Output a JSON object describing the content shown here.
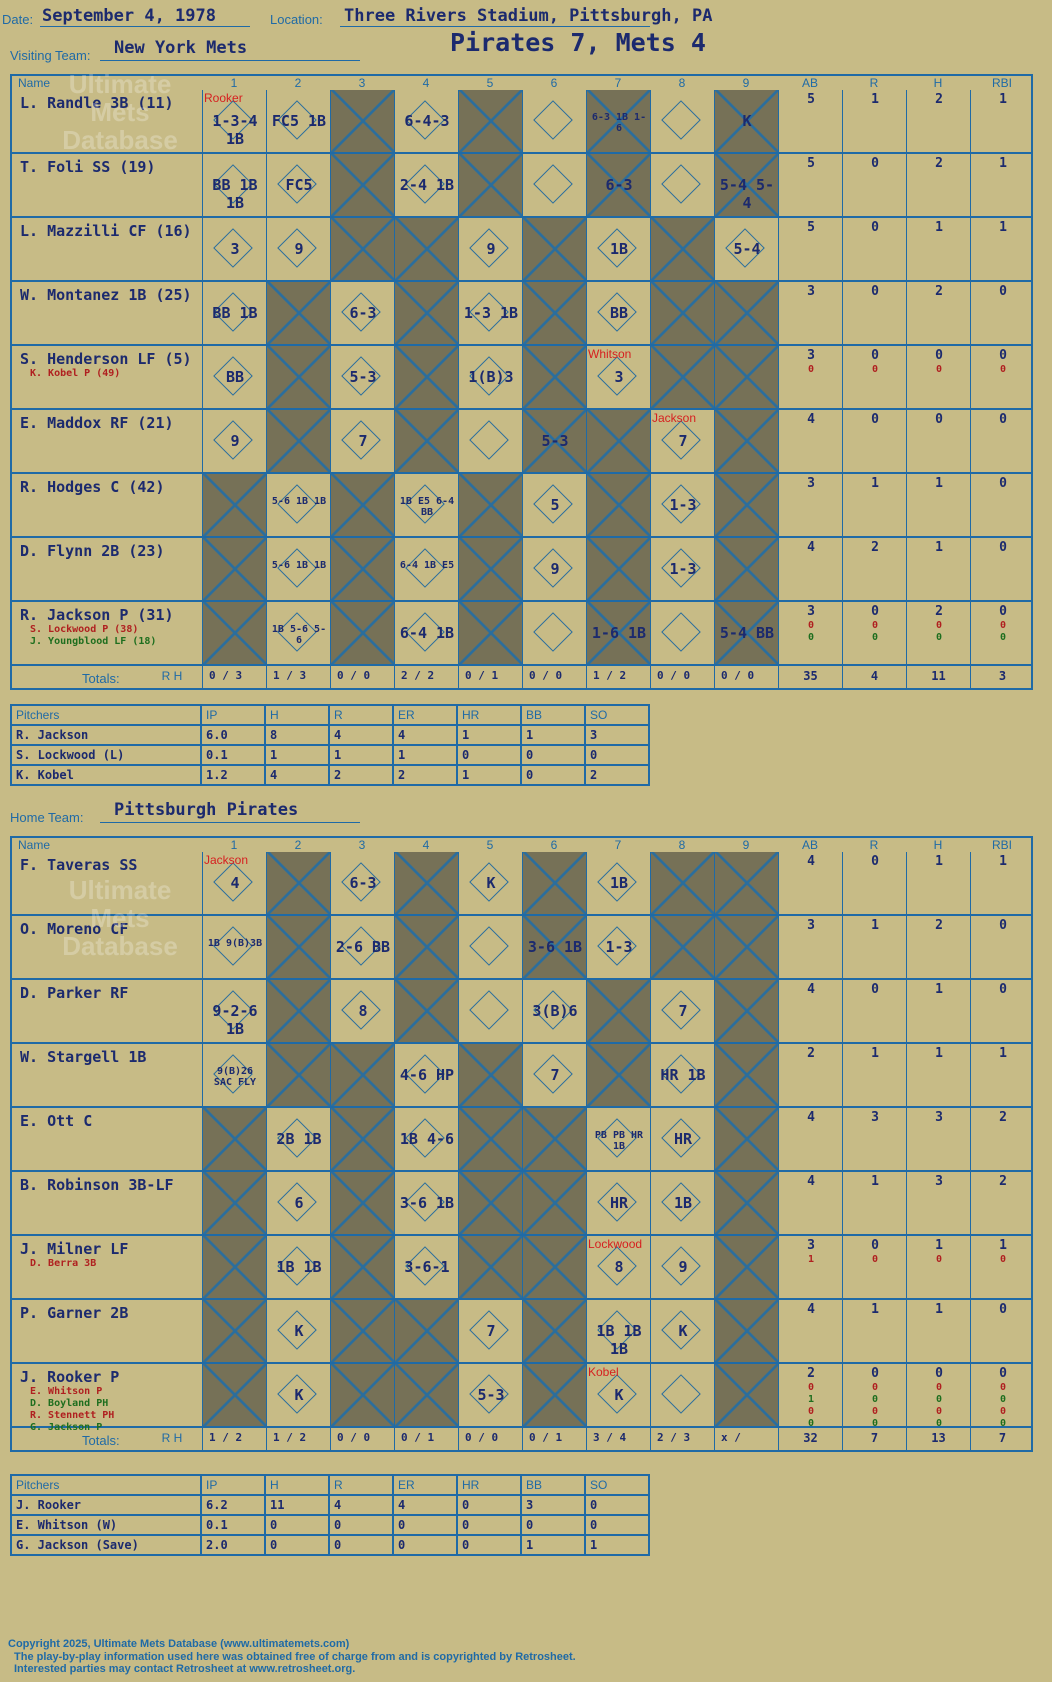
{
  "header": {
    "date_label": "Date:",
    "date": "September 4, 1978",
    "location_label": "Location:",
    "location": "Three Rivers Stadium, Pittsburgh, PA",
    "visiting_label": "Visiting Team:",
    "visiting_team": "New York Mets",
    "home_label": "Home Team:",
    "home_team": "Pittsburgh Pirates",
    "result": "Pirates 7, Mets 4"
  },
  "columns": {
    "name": "Name",
    "innings": [
      "1",
      "2",
      "3",
      "4",
      "5",
      "6",
      "7",
      "8",
      "9"
    ],
    "stats": [
      "AB",
      "R",
      "H",
      "RBI"
    ]
  },
  "watermark": "Ultimate Mets Database",
  "watermark_url": "www.ultimatemets.com",
  "visitors": {
    "players": [
      {
        "name": "L. Randle 3B (11)",
        "subs": [],
        "stats": [
          "5",
          "1",
          "2",
          "1"
        ],
        "marks": [
          "1-3-4 1B",
          "FC5 1B",
          "",
          "6-4-3",
          "",
          "",
          "6-3 1B 1-6",
          "",
          "K"
        ]
      },
      {
        "name": "T. Foli SS (19)",
        "subs": [],
        "stats": [
          "5",
          "0",
          "2",
          "1"
        ],
        "marks": [
          "BB 1B 1B",
          "FC5",
          "",
          "2-4 1B",
          "",
          "",
          "6-3",
          "",
          "5-4 5-4"
        ]
      },
      {
        "name": "L. Mazzilli CF (16)",
        "subs": [],
        "stats": [
          "5",
          "0",
          "1",
          "1"
        ],
        "marks": [
          "3",
          "9",
          "",
          "",
          "9",
          "",
          "1B",
          "",
          "5-4"
        ]
      },
      {
        "name": "W. Montanez 1B (25)",
        "subs": [],
        "stats": [
          "3",
          "0",
          "2",
          "0"
        ],
        "marks": [
          "BB 1B",
          "",
          "6-3",
          "",
          "1-3 1B",
          "",
          "BB",
          "",
          ""
        ]
      },
      {
        "name": "S. Henderson LF (5)",
        "subs": [
          {
            "name": "K. Kobel P (49)",
            "stats": [
              "0",
              "0",
              "0",
              "0"
            ]
          }
        ],
        "stats": [
          "3",
          "0",
          "0",
          "0"
        ],
        "marks": [
          "BB",
          "",
          "5-3",
          "",
          "1(B)3",
          "",
          "3",
          "",
          ""
        ]
      },
      {
        "name": "E. Maddox RF (21)",
        "subs": [],
        "stats": [
          "4",
          "0",
          "0",
          "0"
        ],
        "marks": [
          "9",
          "",
          "7",
          "",
          "",
          "5-3",
          "",
          "7",
          ""
        ]
      },
      {
        "name": "R. Hodges C (42)",
        "subs": [],
        "stats": [
          "3",
          "1",
          "1",
          "0"
        ],
        "marks": [
          "",
          "5-6 1B 1B",
          "",
          "1B E5 6-4 BB",
          "",
          "5",
          "",
          "1-3",
          ""
        ]
      },
      {
        "name": "D. Flynn 2B (23)",
        "subs": [],
        "stats": [
          "4",
          "2",
          "1",
          "0"
        ],
        "marks": [
          "",
          "5-6 1B 1B",
          "",
          "6-4 1B E5",
          "",
          "9",
          "",
          "1-3",
          ""
        ]
      },
      {
        "name": "R. Jackson P (31)",
        "subs": [
          {
            "name": "S. Lockwood P (38)",
            "stats": [
              "0",
              "0",
              "0",
              "0"
            ]
          },
          {
            "name": "J. Youngblood LF (18)",
            "stats": [
              "0",
              "0",
              "0",
              "0"
            ]
          }
        ],
        "stats": [
          "3",
          "0",
          "2",
          "0"
        ],
        "marks": [
          "",
          "1B 5-6 5-6",
          "",
          "6-4 1B",
          "",
          "",
          "1-6 1B",
          "",
          "5-4 BB"
        ]
      }
    ],
    "notes": [
      {
        "text": "Rooker",
        "col": 0,
        "row": 0
      },
      {
        "text": "Whitson",
        "col": 6,
        "row": 4
      },
      {
        "text": "Jackson",
        "col": 7,
        "row": 5
      }
    ],
    "totals_label": "Totals:",
    "totals_rh": [
      "R",
      "H"
    ],
    "inning_totals": [
      [
        "0",
        "3"
      ],
      [
        "1",
        "3"
      ],
      [
        "0",
        "0"
      ],
      [
        "2",
        "2"
      ],
      [
        "0",
        "1"
      ],
      [
        "0",
        "0"
      ],
      [
        "1",
        "2"
      ],
      [
        "0",
        "0"
      ],
      [
        "0",
        "0"
      ]
    ],
    "stat_totals": [
      "35",
      "4",
      "11",
      "3"
    ],
    "pitchers_header": [
      "Pitchers",
      "IP",
      "H",
      "R",
      "ER",
      "HR",
      "BB",
      "SO"
    ],
    "pitchers": [
      [
        "R. Jackson",
        "6.0",
        "8",
        "4",
        "4",
        "1",
        "1",
        "3"
      ],
      [
        "S. Lockwood (L)",
        "0.1",
        "1",
        "1",
        "1",
        "0",
        "0",
        "0"
      ],
      [
        "K. Kobel",
        "1.2",
        "4",
        "2",
        "2",
        "1",
        "0",
        "2"
      ]
    ]
  },
  "home": {
    "players": [
      {
        "name": "F. Taveras SS",
        "subs": [],
        "stats": [
          "4",
          "0",
          "1",
          "1"
        ],
        "marks": [
          "4",
          "",
          "6-3",
          "",
          "K",
          "",
          "1B",
          "",
          ""
        ]
      },
      {
        "name": "O. Moreno CF",
        "subs": [],
        "stats": [
          "3",
          "1",
          "2",
          "0"
        ],
        "marks": [
          "1B 9(B)3B",
          "",
          "2-6 BB",
          "",
          "",
          "3-6 1B",
          "1-3",
          "",
          ""
        ]
      },
      {
        "name": "D. Parker RF",
        "subs": [],
        "stats": [
          "4",
          "0",
          "1",
          "0"
        ],
        "marks": [
          "9-2-6 1B",
          "",
          "8",
          "",
          "",
          "3(B)6",
          "",
          "7",
          ""
        ]
      },
      {
        "name": "W. Stargell 1B",
        "subs": [],
        "stats": [
          "2",
          "1",
          "1",
          "1"
        ],
        "marks": [
          "9(B)26 SAC FLY",
          "",
          "",
          "4-6 HP",
          "",
          "7",
          "",
          "HR 1B",
          ""
        ]
      },
      {
        "name": "E. Ott C",
        "subs": [],
        "stats": [
          "4",
          "3",
          "3",
          "2"
        ],
        "marks": [
          "",
          "2B 1B",
          "",
          "1B 4-6",
          "",
          "",
          "PB PB HR 1B",
          "HR",
          ""
        ]
      },
      {
        "name": "B. Robinson 3B-LF",
        "subs": [],
        "stats": [
          "4",
          "1",
          "3",
          "2"
        ],
        "marks": [
          "",
          "6",
          "",
          "3-6 1B",
          "",
          "",
          "HR",
          "1B",
          ""
        ]
      },
      {
        "name": "J. Milner LF",
        "subs": [
          {
            "name": "D. Berra 3B",
            "stats": [
              "1",
              "0",
              "0",
              "0"
            ]
          }
        ],
        "stats": [
          "3",
          "0",
          "1",
          "1"
        ],
        "marks": [
          "",
          "1B 1B",
          "",
          "3-6-1",
          "",
          "",
          "8",
          "9",
          ""
        ]
      },
      {
        "name": "P. Garner 2B",
        "subs": [],
        "stats": [
          "4",
          "1",
          "1",
          "0"
        ],
        "marks": [
          "",
          "K",
          "",
          "",
          "7",
          "",
          "1B 1B 1B",
          "K",
          ""
        ]
      },
      {
        "name": "J. Rooker P",
        "subs": [
          {
            "name": "E. Whitson P",
            "stats": [
              "0",
              "0",
              "0",
              "0"
            ]
          },
          {
            "name": "D. Boyland PH",
            "stats": [
              "1",
              "0",
              "0",
              "0"
            ]
          },
          {
            "name": "R. Stennett PH",
            "stats": [
              "0",
              "0",
              "0",
              "0"
            ]
          },
          {
            "name": "G. Jackson P",
            "stats": [
              "0",
              "0",
              "0",
              "0"
            ]
          }
        ],
        "stats": [
          "2",
          "0",
          "0",
          "0"
        ],
        "marks": [
          "",
          "K",
          "",
          "",
          "5-3",
          "",
          "K",
          "",
          ""
        ]
      }
    ],
    "notes": [
      {
        "text": "Jackson",
        "col": 0,
        "row": 0
      },
      {
        "text": "Lockwood",
        "col": 6,
        "row": 6
      },
      {
        "text": "Kobel",
        "col": 6,
        "row": 8
      }
    ],
    "totals_label": "Totals:",
    "totals_rh": [
      "R",
      "H"
    ],
    "inning_totals": [
      [
        "1",
        "2"
      ],
      [
        "1",
        "2"
      ],
      [
        "0",
        "0"
      ],
      [
        "0",
        "1"
      ],
      [
        "0",
        "0"
      ],
      [
        "0",
        "1"
      ],
      [
        "3",
        "4"
      ],
      [
        "2",
        "3"
      ],
      [
        "x",
        ""
      ]
    ],
    "stat_totals": [
      "32",
      "7",
      "13",
      "7"
    ],
    "pitchers_header": [
      "Pitchers",
      "IP",
      "H",
      "R",
      "ER",
      "HR",
      "BB",
      "SO"
    ],
    "pitchers": [
      [
        "J. Rooker",
        "6.2",
        "11",
        "4",
        "4",
        "0",
        "3",
        "0"
      ],
      [
        "E. Whitson (W)",
        "0.1",
        "0",
        "0",
        "0",
        "0",
        "0",
        "0"
      ],
      [
        "G. Jackson (Save)",
        "2.0",
        "0",
        "0",
        "0",
        "0",
        "1",
        "1"
      ]
    ]
  },
  "footer": [
    "Copyright 2025, Ultimate Mets Database (www.ultimatemets.com)",
    "The play-by-play information used here was obtained free of charge from and is copyrighted by Retrosheet.",
    "Interested parties may contact Retrosheet at www.retrosheet.org."
  ]
}
